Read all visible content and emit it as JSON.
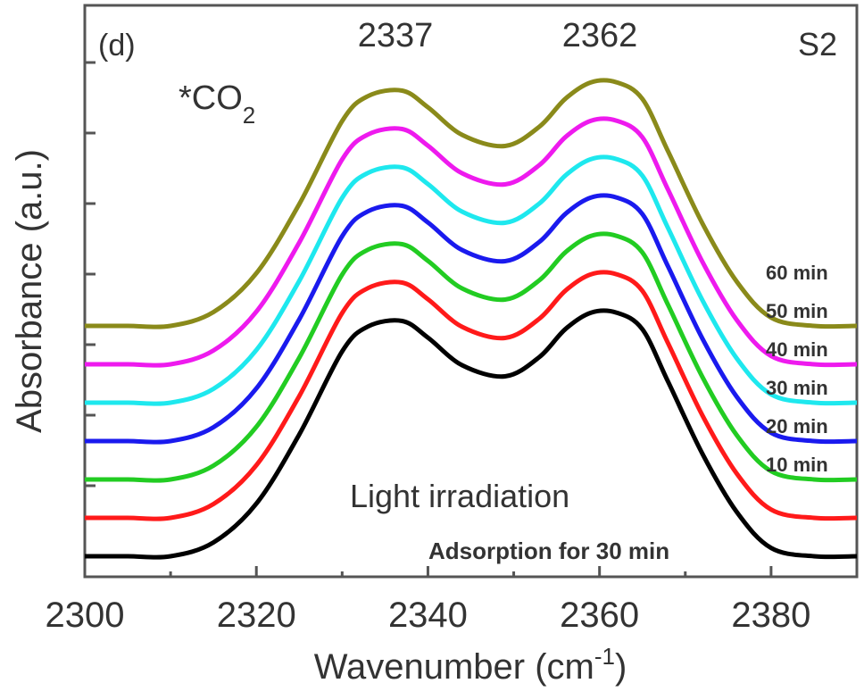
{
  "chart_data": {
    "type": "line",
    "panel_label": "(d)",
    "sample_label": "S2",
    "species_label": "*CO",
    "species_subscript": "2",
    "peak_labels": [
      "2337",
      "2362"
    ],
    "xlabel": "Wavenumber (cm",
    "xlabel_sup": "-1",
    "xlabel_end": ")",
    "ylabel": "Absorbance (a.u.)",
    "xlim": [
      2300,
      2390
    ],
    "xticks": [
      "2300",
      "2320",
      "2340",
      "2360",
      "2380"
    ],
    "annotation_light": "Light irradiation",
    "annotation_adsorption": "Adsorption for 30 min",
    "curve_shape": {
      "x": [
        2300,
        2305,
        2310,
        2315,
        2320,
        2325,
        2330,
        2333,
        2337,
        2340,
        2344,
        2349,
        2353,
        2356,
        2359,
        2362,
        2365,
        2368,
        2372,
        2376,
        2380,
        2385,
        2390
      ],
      "y": [
        0.0,
        0.0,
        0.0,
        0.05,
        0.19,
        0.44,
        0.74,
        0.83,
        0.85,
        0.79,
        0.69,
        0.65,
        0.72,
        0.82,
        0.88,
        0.88,
        0.82,
        0.63,
        0.37,
        0.16,
        0.03,
        0.0,
        0.0
      ]
    },
    "series": [
      {
        "name": "Adsorption for 30 min",
        "label": "",
        "color": "#000000",
        "offset": 0,
        "amp": 1.0
      },
      {
        "name": "10 min",
        "label": "10 min",
        "color": "#ff1a1a",
        "offset": 1,
        "amp": 1.0
      },
      {
        "name": "20 min",
        "label": "20 min",
        "color": "#22cc22",
        "offset": 2,
        "amp": 1.0
      },
      {
        "name": "30 min",
        "label": "30 min",
        "color": "#1a1aee",
        "offset": 3,
        "amp": 1.0
      },
      {
        "name": "40 min",
        "label": "40 min",
        "color": "#1ee8ee",
        "offset": 4,
        "amp": 1.0
      },
      {
        "name": "50 min",
        "label": "50 min",
        "color": "#ee1aee",
        "offset": 5,
        "amp": 1.0
      },
      {
        "name": "60 min",
        "label": "60 min",
        "color": "#8a8a1a",
        "offset": 6,
        "amp": 1.0
      }
    ]
  }
}
